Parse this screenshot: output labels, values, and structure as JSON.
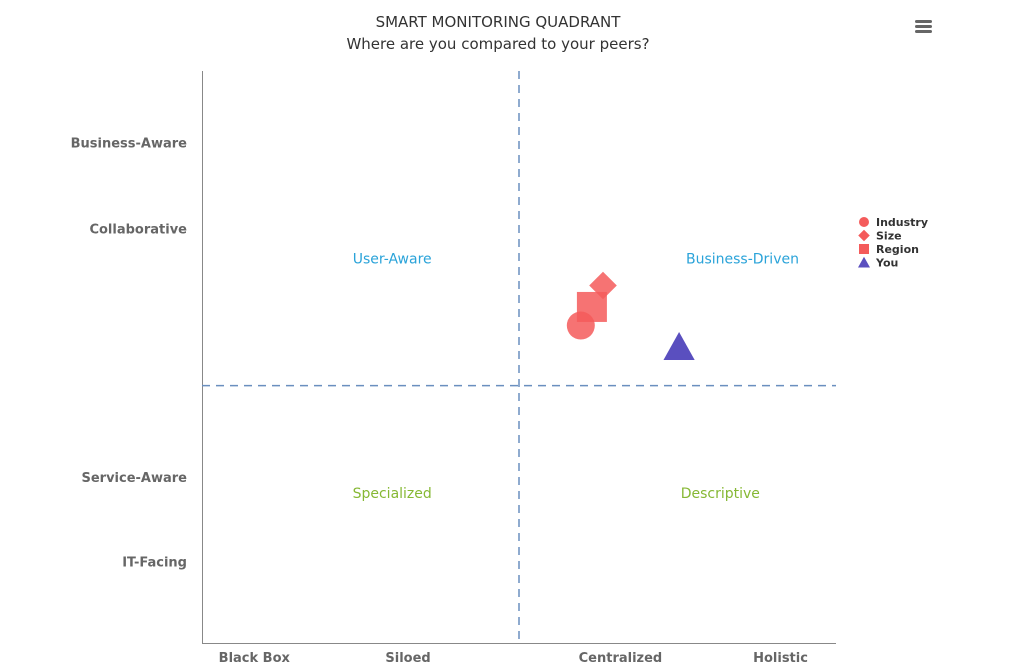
{
  "chart_data": {
    "type": "scatter",
    "title": "SMART MONITORING QUADRANT",
    "subtitle": "Where are you compared to your peers?",
    "xlim": [
      0,
      4
    ],
    "ylim": [
      0,
      4
    ],
    "x_ticks": [
      {
        "label": "Black Box",
        "value": 0.33
      },
      {
        "label": "Siloed",
        "value": 1.3
      },
      {
        "label": "Centralized",
        "value": 2.64
      },
      {
        "label": "Holistic",
        "value": 3.65
      }
    ],
    "y_ticks": [
      {
        "label": "Business-Aware",
        "value": 3.5
      },
      {
        "label": "Collaborative",
        "value": 2.9
      },
      {
        "label": "Service-Aware",
        "value": 1.16
      },
      {
        "label": "IT-Facing",
        "value": 0.57
      }
    ],
    "dividers": {
      "x": 2.0,
      "y": 1.8
    },
    "quadrants": [
      {
        "label": "User-Aware",
        "x": 1.2,
        "y": 2.69,
        "color": "#2aa3d9"
      },
      {
        "label": "Business-Driven",
        "x": 3.41,
        "y": 2.69,
        "color": "#2aa3d9"
      },
      {
        "label": "Specialized",
        "x": 1.2,
        "y": 1.05,
        "color": "#86b834"
      },
      {
        "label": "Descriptive",
        "x": 3.27,
        "y": 1.05,
        "color": "#86b834"
      }
    ],
    "series": [
      {
        "name": "Industry",
        "symbol": "circle",
        "color": "#f45b5b",
        "x": 2.39,
        "y": 2.22
      },
      {
        "name": "Size",
        "symbol": "diamond",
        "color": "#f45b5b",
        "x": 2.53,
        "y": 2.5
      },
      {
        "name": "Region",
        "symbol": "square",
        "color": "#f45b5b",
        "x": 2.46,
        "y": 2.35
      },
      {
        "name": "You",
        "symbol": "triangle",
        "color": "#5a4fbf",
        "x": 3.01,
        "y": 2.07
      }
    ],
    "legend_position": "right",
    "grid": false
  }
}
